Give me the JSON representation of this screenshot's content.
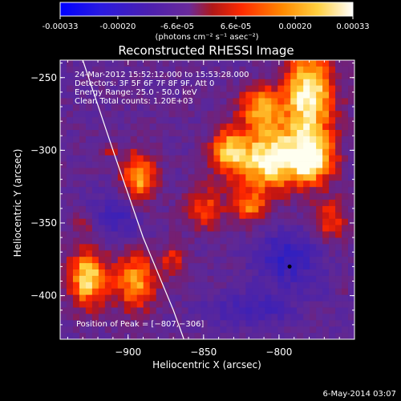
{
  "chart_data": {
    "type": "heatmap",
    "title": "Reconstructed RHESSI Image",
    "colorbar": {
      "tick_labels": [
        "-0.00033",
        "-0.00020",
        "-6.6e-05",
        "6.6e-05",
        "0.00020",
        "0.00033"
      ],
      "tick_values": [
        -0.00033,
        -0.0002,
        -6.6e-05,
        6.6e-05,
        0.0002,
        0.00033
      ],
      "range": [
        -0.00033,
        0.00033
      ],
      "unit_label": "(photons cm⁻² s⁻¹ asec⁻²)",
      "colormap": [
        "#0000ff",
        "#3c1fa8",
        "#5a2a9a",
        "#b01818",
        "#ff2a00",
        "#ff9a00",
        "#ffe060",
        "#ffffff"
      ]
    },
    "xlabel": "Heliocentric X (arcsec)",
    "ylabel": "Heliocentric Y (arcsec)",
    "xlim": [
      -945,
      -750
    ],
    "ylim": [
      -430,
      -238
    ],
    "x_ticks": [
      -900,
      -850,
      -800
    ],
    "x_tick_labels": [
      "−900",
      "−850",
      "−800"
    ],
    "y_ticks": [
      -250,
      -300,
      -350,
      -400
    ],
    "y_tick_labels": [
      "−250",
      "−300",
      "−350",
      "−400"
    ],
    "info_lines": [
      "24-Mar-2012 15:52:12.000 to 15:53:28.000",
      "Detectors: 3F 5F 6F 7F 8F 9F, Att 0",
      "Energy Range: 25.0 - 50.0 keV",
      "Clean     Total counts: 1.20E+03"
    ],
    "peak_label": "Position of Peak = [−807,−306]",
    "peak": [
      -807,
      -306
    ],
    "limb_curve": [
      [
        -930,
        -238
      ],
      [
        -910,
        -300
      ],
      [
        -890,
        -360
      ],
      [
        -870,
        -410
      ],
      [
        -863,
        -430
      ]
    ],
    "sources": [
      {
        "x": -780,
        "y": -262,
        "sigma_x": 12,
        "sigma_y": 22,
        "amp": 1.0
      },
      {
        "x": -812,
        "y": -270,
        "sigma_x": 10,
        "sigma_y": 10,
        "amp": 0.7
      },
      {
        "x": -807,
        "y": -306,
        "sigma_x": 18,
        "sigma_y": 16,
        "amp": 1.0
      },
      {
        "x": -777,
        "y": -306,
        "sigma_x": 10,
        "sigma_y": 12,
        "amp": 0.8
      },
      {
        "x": -835,
        "y": -300,
        "sigma_x": 8,
        "sigma_y": 10,
        "amp": 0.6
      },
      {
        "x": -893,
        "y": -320,
        "sigma_x": 8,
        "sigma_y": 14,
        "amp": 0.75
      },
      {
        "x": -912,
        "y": -300,
        "sigma_x": 4,
        "sigma_y": 3,
        "amp": 0.45
      },
      {
        "x": -850,
        "y": -340,
        "sigma_x": 10,
        "sigma_y": 10,
        "amp": 0.5
      },
      {
        "x": -819,
        "y": -340,
        "sigma_x": 8,
        "sigma_y": 8,
        "amp": 0.55
      },
      {
        "x": -765,
        "y": -348,
        "sigma_x": 8,
        "sigma_y": 10,
        "amp": 0.5
      },
      {
        "x": -927,
        "y": -388,
        "sigma_x": 9,
        "sigma_y": 14,
        "amp": 0.9
      },
      {
        "x": -895,
        "y": -390,
        "sigma_x": 10,
        "sigma_y": 14,
        "amp": 0.75
      },
      {
        "x": -870,
        "y": -375,
        "sigma_x": 6,
        "sigma_y": 8,
        "amp": 0.4
      },
      {
        "x": -930,
        "y": -350,
        "sigma_x": 5,
        "sigma_y": 4,
        "amp": 0.35
      },
      {
        "x": -760,
        "y": -395,
        "sigma_x": 5,
        "sigma_y": 5,
        "amp": 0.35
      },
      {
        "x": -905,
        "y": -345,
        "sigma_x": 12,
        "sigma_y": 12,
        "amp": -0.35
      },
      {
        "x": -795,
        "y": -375,
        "sigma_x": 15,
        "sigma_y": 14,
        "amp": -0.45
      },
      {
        "x": -820,
        "y": -410,
        "sigma_x": 20,
        "sigma_y": 8,
        "amp": -0.35
      },
      {
        "x": -765,
        "y": -395,
        "sigma_x": 10,
        "sigma_y": 6,
        "amp": -0.25
      }
    ]
  },
  "timestamp": "6-May-2014 03:07"
}
